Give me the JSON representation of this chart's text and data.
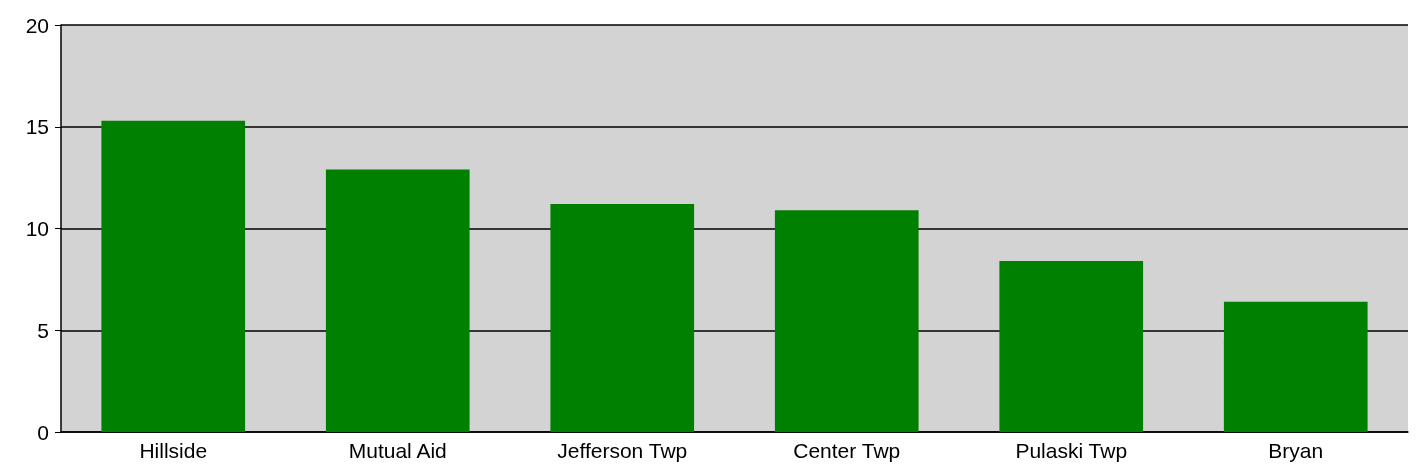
{
  "chart_data": {
    "type": "bar",
    "categories": [
      "Hillside",
      "Mutual Aid",
      "Jefferson Twp",
      "Center Twp",
      "Pulaski Twp",
      "Bryan"
    ],
    "values": [
      15.3,
      12.9,
      11.2,
      10.9,
      8.4,
      6.4
    ],
    "color": "#008000",
    "ylim": [
      0,
      20
    ],
    "yticks": [
      0,
      5,
      10,
      15,
      20
    ],
    "grid": "y"
  }
}
